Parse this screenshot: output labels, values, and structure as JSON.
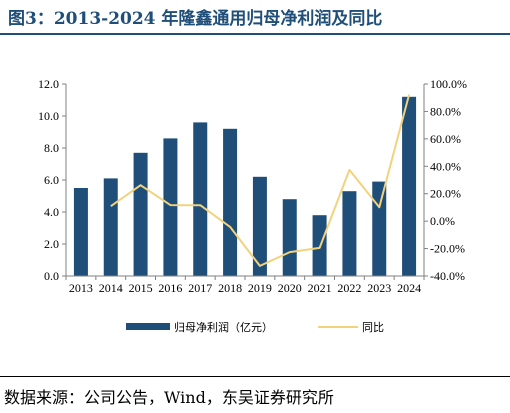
{
  "header": {
    "title": "图3：2013-2024 年隆鑫通用归母净利润及同比"
  },
  "footer": {
    "source": "数据来源：公司公告，Wind，东吴证券研究所"
  },
  "colors": {
    "title": "#1f4e79",
    "bar": "#1f4e79",
    "line": "#f2d27c",
    "axis": "#808080"
  },
  "chart_data": {
    "type": "bar",
    "title": "",
    "xlabel": "",
    "ylabel": "",
    "categories": [
      "2013",
      "2014",
      "2015",
      "2016",
      "2017",
      "2018",
      "2019",
      "2020",
      "2021",
      "2022",
      "2023",
      "2024"
    ],
    "series": [
      {
        "name": "归母净利润（亿元）",
        "type": "bar",
        "axis": "left",
        "values": [
          5.5,
          6.1,
          7.7,
          8.6,
          9.6,
          9.2,
          6.2,
          4.8,
          3.8,
          5.3,
          5.9,
          11.2
        ]
      },
      {
        "name": "同比",
        "type": "line",
        "axis": "right",
        "values": [
          null,
          10.9,
          26.2,
          11.7,
          11.6,
          -4.2,
          -32.6,
          -22.6,
          -19.5,
          37.4,
          10.2,
          92.3
        ]
      }
    ],
    "ylim": [
      0,
      12
    ],
    "yticks": [
      "0.0",
      "2.0",
      "4.0",
      "6.0",
      "8.0",
      "10.0",
      "12.0"
    ],
    "y2lim": [
      -40,
      100
    ],
    "y2ticks": [
      "-40.0%",
      "-20.0%",
      "0.0%",
      "20.0%",
      "40.0%",
      "60.0%",
      "80.0%",
      "100.0%"
    ],
    "grid": false,
    "legend_position": "bottom"
  }
}
